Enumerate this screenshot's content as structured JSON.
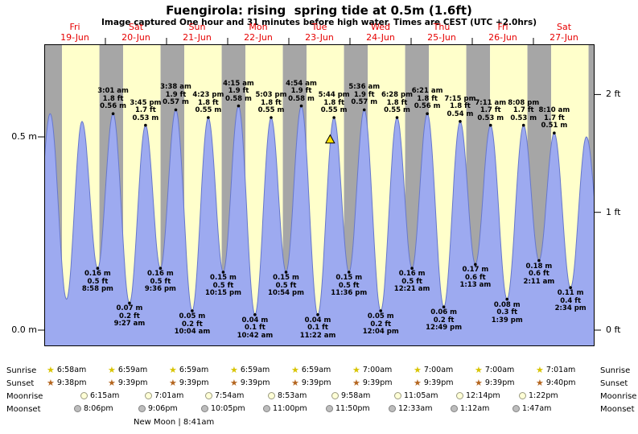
{
  "title": "Fuengirola: rising  spring tide at 0.5m (1.6ft)",
  "subtitle": "Image captured One hour and 31 minutes before high water. Times are CEST (UTC +2.0hrs)",
  "chart_data": {
    "type": "area",
    "x_range_hours": [
      0,
      216
    ],
    "y_range_m": [
      -0.042,
      0.74
    ],
    "colors": {
      "daylight_band": "#ffffcb",
      "night_band": "#a6a6a6",
      "water_fill": "#9daaf0",
      "water_line": "#6677cc",
      "day_label": "#e60000",
      "marker_fill": "#ffe000"
    },
    "sunrise_hour": 6.97,
    "sunset_hour": 21.65,
    "y_ticks_left": [
      {
        "h": 0.5,
        "label": "0.5 m"
      },
      {
        "h": 0.0,
        "label": "0.0 m"
      }
    ],
    "y_ticks_right": [
      {
        "h": 0.6096,
        "label": "2 ft"
      },
      {
        "h": 0.3048,
        "label": "1 ft"
      },
      {
        "h": 0.0,
        "label": "0 ft"
      }
    ],
    "days": [
      {
        "name": "Fri",
        "date": "19-Jun"
      },
      {
        "name": "Sat",
        "date": "20-Jun"
      },
      {
        "name": "Sun",
        "date": "21-Jun"
      },
      {
        "name": "Mon",
        "date": "22-Jun"
      },
      {
        "name": "Tue",
        "date": "23-Jun"
      },
      {
        "name": "Wed",
        "date": "24-Jun"
      },
      {
        "name": "Thu",
        "date": "25-Jun"
      },
      {
        "name": "Fri",
        "date": "26-Jun"
      },
      {
        "name": "Sat",
        "date": "27-Jun"
      }
    ],
    "tide_events": [
      {
        "t": -3.8,
        "h": 0.16,
        "type": "low"
      },
      {
        "t": 2.33,
        "h": 0.56,
        "type": "high"
      },
      {
        "t": 8.75,
        "h": 0.08,
        "type": "low"
      },
      {
        "t": 14.83,
        "h": 0.54,
        "type": "high"
      },
      {
        "t": 20.97,
        "h": 0.16,
        "type": "low",
        "time": "8:58 pm",
        "ft": "0.5 ft",
        "m": "0.16 m"
      },
      {
        "t": 27.02,
        "h": 0.56,
        "type": "high",
        "time": "3:01 am",
        "ft": "1.8 ft",
        "m": "0.56 m"
      },
      {
        "t": 33.45,
        "h": 0.07,
        "type": "low",
        "time": "9:27 am",
        "ft": "0.2 ft",
        "m": "0.07 m"
      },
      {
        "t": 39.75,
        "h": 0.53,
        "type": "high",
        "time": "3:45 pm",
        "ft": "1.7 ft",
        "m": "0.53 m"
      },
      {
        "t": 45.6,
        "h": 0.16,
        "type": "low",
        "time": "9:36 pm",
        "ft": "0.5 ft",
        "m": "0.16 m"
      },
      {
        "t": 51.63,
        "h": 0.57,
        "type": "high",
        "time": "3:38 am",
        "ft": "1.9 ft",
        "m": "0.57 m"
      },
      {
        "t": 58.07,
        "h": 0.05,
        "type": "low",
        "time": "10:04 am",
        "ft": "0.2 ft",
        "m": "0.05 m"
      },
      {
        "t": 64.38,
        "h": 0.55,
        "type": "high",
        "time": "4:23 pm",
        "ft": "1.8 ft",
        "m": "0.55 m"
      },
      {
        "t": 70.25,
        "h": 0.15,
        "type": "low",
        "time": "10:15 pm",
        "ft": "0.5 ft",
        "m": "0.15 m"
      },
      {
        "t": 76.25,
        "h": 0.58,
        "type": "high",
        "time": "4:15 am",
        "ft": "1.9 ft",
        "m": "0.58 m"
      },
      {
        "t": 82.7,
        "h": 0.04,
        "type": "low",
        "time": "10:42 am",
        "ft": "0.1 ft",
        "m": "0.04 m"
      },
      {
        "t": 89.05,
        "h": 0.55,
        "type": "high",
        "time": "5:03 pm",
        "ft": "1.8 ft",
        "m": "0.55 m"
      },
      {
        "t": 94.9,
        "h": 0.15,
        "type": "low",
        "time": "10:54 pm",
        "ft": "0.5 ft",
        "m": "0.15 m"
      },
      {
        "t": 100.9,
        "h": 0.58,
        "type": "high",
        "time": "4:54 am",
        "ft": "1.9 ft",
        "m": "0.58 m"
      },
      {
        "t": 107.37,
        "h": 0.04,
        "type": "low",
        "time": "11:22 am",
        "ft": "0.1 ft",
        "m": "0.04 m"
      },
      {
        "t": 113.73,
        "h": 0.55,
        "type": "high",
        "time": "5:44 pm",
        "ft": "1.8 ft",
        "m": "0.55 m"
      },
      {
        "t": 119.6,
        "h": 0.15,
        "type": "low",
        "time": "11:36 pm",
        "ft": "0.5 ft",
        "m": "0.15 m"
      },
      {
        "t": 125.6,
        "h": 0.57,
        "type": "high",
        "time": "5:36 am",
        "ft": "1.9 ft",
        "m": "0.57 m"
      },
      {
        "t": 132.07,
        "h": 0.05,
        "type": "low",
        "time": "12:04 pm",
        "ft": "0.2 ft",
        "m": "0.05 m"
      },
      {
        "t": 138.47,
        "h": 0.55,
        "type": "high",
        "time": "6:28 pm",
        "ft": "1.8 ft",
        "m": "0.55 m"
      },
      {
        "t": 144.35,
        "h": 0.16,
        "type": "low",
        "time": "12:21 am",
        "ft": "0.5 ft",
        "m": "0.16 m"
      },
      {
        "t": 150.35,
        "h": 0.56,
        "type": "high",
        "time": "6:21 am",
        "ft": "1.8 ft",
        "m": "0.56 m"
      },
      {
        "t": 156.82,
        "h": 0.06,
        "type": "low",
        "time": "12:49 pm",
        "ft": "0.2 ft",
        "m": "0.06 m"
      },
      {
        "t": 163.25,
        "h": 0.54,
        "type": "high",
        "time": "7:15 pm",
        "ft": "1.8 ft",
        "m": "0.54 m"
      },
      {
        "t": 169.22,
        "h": 0.17,
        "type": "low",
        "time": "1:13 am",
        "ft": "0.6 ft",
        "m": "0.17 m"
      },
      {
        "t": 175.18,
        "h": 0.53,
        "type": "high",
        "time": "7:11 am",
        "ft": "1.7 ft",
        "m": "0.53 m"
      },
      {
        "t": 181.65,
        "h": 0.08,
        "type": "low",
        "time": "1:39 pm",
        "ft": "0.3 ft",
        "m": "0.08 m"
      },
      {
        "t": 188.13,
        "h": 0.53,
        "type": "high",
        "time": "8:08 pm",
        "ft": "1.7 ft",
        "m": "0.53 m"
      },
      {
        "t": 194.18,
        "h": 0.18,
        "type": "low",
        "time": "2:11 am",
        "ft": "0.6 ft",
        "m": "0.18 m"
      },
      {
        "t": 200.17,
        "h": 0.51,
        "type": "high",
        "time": "8:10 am",
        "ft": "1.7 ft",
        "m": "0.51 m"
      },
      {
        "t": 206.57,
        "h": 0.11,
        "type": "low",
        "time": "2:34 pm",
        "ft": "0.4 ft",
        "m": "0.11 m"
      },
      {
        "t": 212.8,
        "h": 0.5,
        "type": "high"
      },
      {
        "t": 219.0,
        "h": 0.18,
        "type": "low"
      }
    ],
    "current_marker": {
      "t": 112.2,
      "h": 0.48
    }
  },
  "astro": {
    "rows": [
      {
        "id": "sunrise",
        "label": "Sunrise",
        "icon": "sunrise-star",
        "times": [
          "6:58am",
          "6:59am",
          "6:59am",
          "6:59am",
          "6:59am",
          "7:00am",
          "7:00am",
          "7:00am",
          "7:01am"
        ]
      },
      {
        "id": "sunset",
        "label": "Sunset",
        "icon": "sunset-star",
        "times": [
          "9:38pm",
          "9:39pm",
          "9:39pm",
          "9:39pm",
          "9:39pm",
          "9:39pm",
          "9:39pm",
          "9:39pm",
          "9:40pm"
        ]
      },
      {
        "id": "moonrise",
        "label": "Moonrise",
        "icon": "moonrise-circle",
        "times": [
          "6:15am",
          "7:01am",
          "7:54am",
          "8:53am",
          "9:58am",
          "11:05am",
          "12:14pm",
          "1:22pm"
        ]
      },
      {
        "id": "moonset",
        "label": "Moonset",
        "icon": "moonset-circle",
        "times": [
          "8:06pm",
          "9:06pm",
          "10:05pm",
          "11:00pm",
          "11:50pm",
          "12:33am",
          "1:12am",
          "1:47am"
        ]
      }
    ],
    "moon_phase": "New Moon | 8:41am"
  }
}
